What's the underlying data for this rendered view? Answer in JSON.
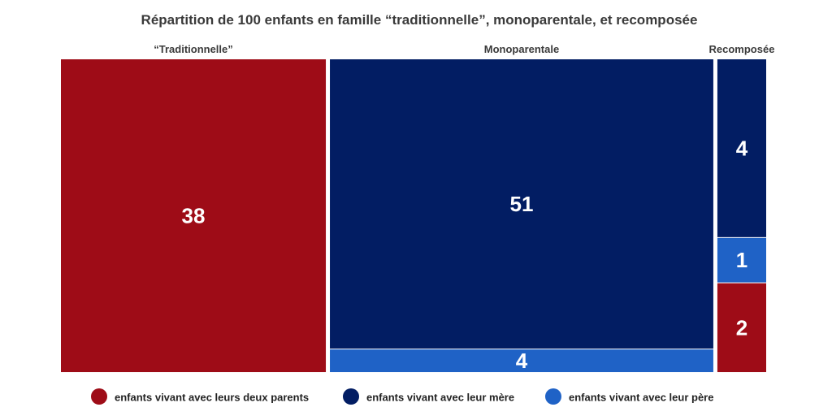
{
  "chart_data": {
    "type": "treemap",
    "title": "Répartition de 100 enfants en famille “traditionnelle”, monoparentale, et recomposée",
    "groups": [
      {
        "name": "“Traditionnelle”",
        "cells": [
          {
            "category": "enfants vivant avec leurs deux parents",
            "value": 38
          }
        ]
      },
      {
        "name": "Monoparentale",
        "cells": [
          {
            "category": "enfants vivant avec leur mère",
            "value": 51
          },
          {
            "category": "enfants vivant avec leur père",
            "value": 4
          }
        ]
      },
      {
        "name": "Recomposée",
        "cells": [
          {
            "category": "enfants vivant avec leur mère",
            "value": 4
          },
          {
            "category": "enfants vivant avec leur père",
            "value": 1
          },
          {
            "category": "enfants vivant avec leurs deux parents",
            "value": 2
          }
        ]
      }
    ],
    "legend": {
      "position": "bottom",
      "entries": [
        {
          "label": "enfants vivant avec leurs deux parents",
          "color": "#9e0c17"
        },
        {
          "label": "enfants vivant avec leur mère",
          "color": "#021d63"
        },
        {
          "label": "enfants vivant avec leur père",
          "color": "#1f62c6"
        }
      ]
    }
  }
}
